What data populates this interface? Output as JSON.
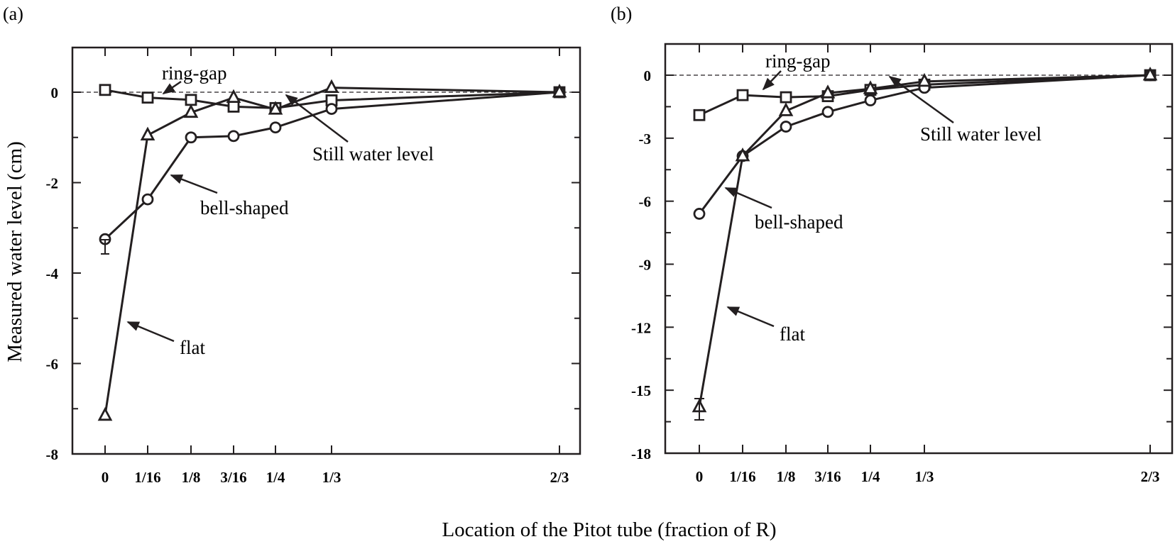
{
  "figure": {
    "xlabel": "Location of the Pitot tube (fraction of R)",
    "ylabel": "Measured water level (cm)"
  },
  "chart_data": [
    {
      "panel": "(a)",
      "type": "line",
      "x": [
        "0",
        "1/16",
        "1/8",
        "3/16",
        "1/4",
        "1/3",
        "2/3"
      ],
      "x_numeric": [
        0,
        0.0625,
        0.125,
        0.1875,
        0.25,
        0.3333,
        0.6667
      ],
      "ylabel": "Measured water level (cm)",
      "xlabel": "Location of the Pitot tube (fraction of R)",
      "ylim": [
        -8,
        1
      ],
      "yticks": [
        0,
        -2,
        -4,
        -6,
        -8
      ],
      "grid": false,
      "reference_line": {
        "y": 0,
        "style": "dashed",
        "label": "Still water level"
      },
      "series": [
        {
          "name": "ring-gap",
          "marker": "square",
          "values": [
            0.05,
            -0.12,
            -0.17,
            -0.32,
            -0.35,
            -0.18,
            0
          ]
        },
        {
          "name": "bell-shaped",
          "marker": "circle",
          "values": [
            -3.25,
            -2.37,
            -1.0,
            -0.97,
            -0.78,
            -0.37,
            0
          ]
        },
        {
          "name": "flat",
          "marker": "triangle",
          "values": [
            -7.15,
            -0.95,
            -0.45,
            -0.12,
            -0.38,
            0.1,
            0
          ]
        }
      ],
      "annotations": [
        "ring-gap",
        "bell-shaped",
        "flat",
        "Still water level"
      ]
    },
    {
      "panel": "(b)",
      "type": "line",
      "x": [
        "0",
        "1/16",
        "1/8",
        "3/16",
        "1/4",
        "1/3",
        "2/3"
      ],
      "x_numeric": [
        0,
        0.0625,
        0.125,
        0.1875,
        0.25,
        0.3333,
        0.6667
      ],
      "ylabel": "Measured water level (cm)",
      "xlabel": "Location of the Pitot tube (fraction of R)",
      "ylim": [
        -18,
        1.5
      ],
      "yticks": [
        0,
        -3,
        -6,
        -9,
        -12,
        -15,
        -18
      ],
      "grid": false,
      "reference_line": {
        "y": 0,
        "style": "dashed",
        "label": "Still water level"
      },
      "series": [
        {
          "name": "ring-gap",
          "marker": "square",
          "values": [
            -1.9,
            -0.95,
            -1.05,
            -1.0,
            -0.7,
            -0.45,
            0
          ]
        },
        {
          "name": "bell-shaped",
          "marker": "circle",
          "values": [
            -6.6,
            -3.85,
            -2.45,
            -1.75,
            -1.2,
            -0.6,
            0
          ]
        },
        {
          "name": "flat",
          "marker": "triangle",
          "values": [
            -15.8,
            -3.85,
            -1.7,
            -0.85,
            -0.65,
            -0.3,
            0
          ]
        }
      ],
      "annotations": [
        "ring-gap",
        "bell-shaped",
        "flat",
        "Still water level"
      ]
    }
  ],
  "panels": {
    "a": {
      "label": "(a)",
      "yticks": [
        "0",
        "-2",
        "-4",
        "-6",
        "-8"
      ],
      "ann_ring": "ring-gap",
      "ann_bell": "bell-shaped",
      "ann_flat": "flat",
      "ann_still": "Still water level"
    },
    "b": {
      "label": "(b)",
      "yticks": [
        "0",
        "-3",
        "-6",
        "-9",
        "-12",
        "-15",
        "-18"
      ],
      "ann_ring": "ring-gap",
      "ann_bell": "bell-shaped",
      "ann_flat": "flat",
      "ann_still": "Still water level"
    }
  },
  "xticks": [
    "0",
    "1/16",
    "1/8",
    "3/16",
    "1/4",
    "1/3",
    "2/3"
  ]
}
